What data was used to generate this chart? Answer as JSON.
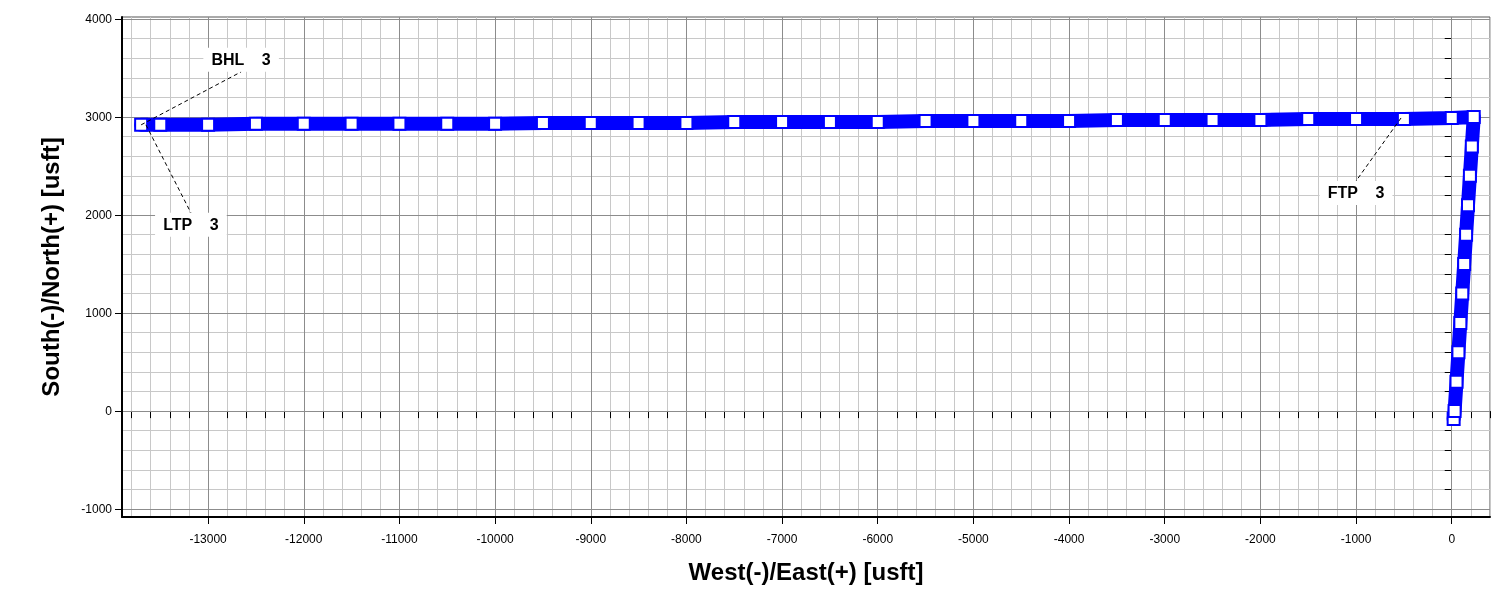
{
  "chart_data": {
    "type": "line",
    "xlabel": "West(-)/East(+) [usft]",
    "ylabel": "South(-)/North(+) [usft]",
    "xlim": [
      -13900,
      400
    ],
    "ylim": [
      -1080,
      4020
    ],
    "xticks": [
      -13000,
      -12000,
      -11000,
      -10000,
      -9000,
      -8000,
      -7000,
      -6000,
      -5000,
      -4000,
      -3000,
      -2000,
      -1000,
      0
    ],
    "yticks": [
      -1000,
      0,
      1000,
      2000,
      3000,
      4000
    ],
    "grid": true,
    "marker": "square",
    "line_style": "solid",
    "series": [
      {
        "color": "#0000ff",
        "x": [
          20,
          30,
          50,
          70,
          90,
          110,
          130,
          150,
          170,
          190,
          210,
          230,
          0,
          -500,
          -1000,
          -1500,
          -2000,
          -2500,
          -3000,
          -3500,
          -4000,
          -4500,
          -5000,
          -5500,
          -6000,
          -6500,
          -7000,
          -7500,
          -8000,
          -8500,
          -9000,
          -9500,
          -10000,
          -10500,
          -11000,
          -11500,
          -12000,
          -12500,
          -13000,
          -13500,
          -13700
        ],
        "values": [
          -80,
          0,
          300,
          600,
          900,
          1200,
          1500,
          1800,
          2100,
          2400,
          2700,
          3000,
          2990,
          2980,
          2980,
          2980,
          2970,
          2970,
          2970,
          2970,
          2960,
          2960,
          2960,
          2960,
          2950,
          2950,
          2950,
          2950,
          2940,
          2940,
          2940,
          2940,
          2930,
          2930,
          2930,
          2930,
          2930,
          2930,
          2920,
          2920,
          2920
        ]
      }
    ],
    "annotations": [
      {
        "text": "BHL    3",
        "x": -13700,
        "y": 2920
      },
      {
        "text": "LTP    3",
        "x": -13650,
        "y": 2920
      },
      {
        "text": "FTP    3",
        "x": -530,
        "y": 2990
      }
    ]
  }
}
